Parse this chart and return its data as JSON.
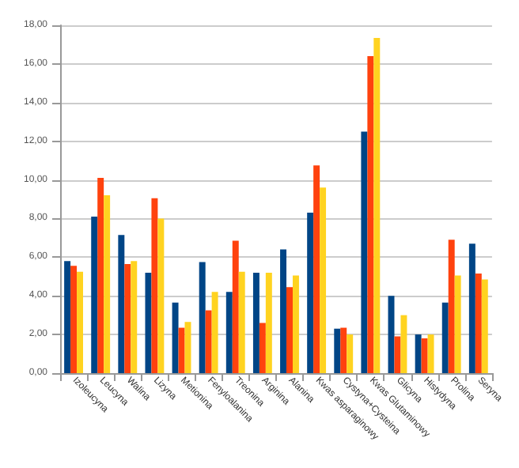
{
  "chart_data": {
    "type": "bar",
    "categories": [
      "Izoleucyna",
      "Leucyna",
      "Walina",
      "Lizyna",
      "Metionina",
      "Fenyloalanina",
      "Treonina",
      "Arginina",
      "Alanina",
      "Kwas asparaginowy",
      "Cystyna+Cysteina",
      "Kwas Glutaminowy",
      "Glicyna",
      "Histydyna",
      "Prolina",
      "Seryna"
    ],
    "series": [
      {
        "color": "#004586",
        "values": [
          5.8,
          8.1,
          7.15,
          5.2,
          3.65,
          5.75,
          4.2,
          5.2,
          6.4,
          8.3,
          2.3,
          12.5,
          4.0,
          2.0,
          3.65,
          6.7
        ]
      },
      {
        "color": "#ff420e",
        "values": [
          5.55,
          10.1,
          5.65,
          9.05,
          2.35,
          3.25,
          6.85,
          2.6,
          4.45,
          10.75,
          2.35,
          16.4,
          1.9,
          1.8,
          6.9,
          5.15
        ]
      },
      {
        "color": "#ffd320",
        "values": [
          5.25,
          9.2,
          5.8,
          8.0,
          2.65,
          4.2,
          5.25,
          5.2,
          5.05,
          9.6,
          2.0,
          17.35,
          3.0,
          2.0,
          5.05,
          4.85
        ]
      }
    ],
    "ylim": [
      0,
      18
    ],
    "yticks": [
      {
        "value": 0,
        "label": "0,00"
      },
      {
        "value": 2,
        "label": "2,00"
      },
      {
        "value": 4,
        "label": "4,00"
      },
      {
        "value": 6,
        "label": "6,00"
      },
      {
        "value": 8,
        "label": "8,00"
      },
      {
        "value": 10,
        "label": "10,00"
      },
      {
        "value": 12,
        "label": "12,00"
      },
      {
        "value": 14,
        "label": "14,00"
      },
      {
        "value": 16,
        "label": "16,00"
      },
      {
        "value": 18,
        "label": "18,00"
      }
    ],
    "grid": "y"
  }
}
